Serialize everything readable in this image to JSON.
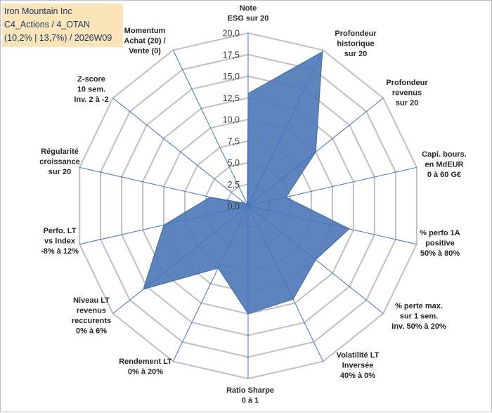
{
  "title_box": {
    "line1": "Iron Mountain Inc",
    "line2": "C4_Actions / 4_OTAN",
    "line3": "(10,2% | 13,7%) / 2026W09"
  },
  "colors": {
    "fill": "#4f79b7",
    "fill_stroke": "#3f68a5",
    "grid": "#bfbfbf",
    "spoke": "#4472c4",
    "title_bg": "#fbe5b8",
    "title_text": "#1f3864"
  },
  "chart_data": {
    "type": "radar",
    "rmin": 0,
    "rmax": 20,
    "ticks": [
      "0,0",
      "2,5",
      "5,0",
      "7,5",
      "10,0",
      "12,5",
      "15,0",
      "17,5",
      "20,0"
    ],
    "axes": [
      {
        "label": [
          "Note",
          "ESG sur 20"
        ],
        "value": 13.0
      },
      {
        "label": [
          "Profondeur",
          "historique",
          "sur 20"
        ],
        "value": 19.8
      },
      {
        "label": [
          "Profondeur",
          "revenus",
          "sur 20"
        ],
        "value": 10.0
      },
      {
        "label": [
          "Capi. bours.",
          "en MdEUR",
          "0 à 60 G€"
        ],
        "value": 4.5
      },
      {
        "label": [
          "% perfo 1A",
          "positive",
          "50% à 80%"
        ],
        "value": 12.0
      },
      {
        "label": [
          "% perte max.",
          "sur 1 sem.",
          "Inv. 50% à 20%"
        ],
        "value": 10.0
      },
      {
        "label": [
          "Volatilité LT",
          "Inversée",
          "40% à 0%"
        ],
        "value": 12.0
      },
      {
        "label": [
          "Ratio Sharpe",
          "0 à 1"
        ],
        "value": 12.5
      },
      {
        "label": [
          "Rendement LT",
          "0% à 20%"
        ],
        "value": 8.0
      },
      {
        "label": [
          "Niveau LT",
          "revenus",
          "reccurents",
          "0% à 6%"
        ],
        "value": 15.5
      },
      {
        "label": [
          "Perfo. LT",
          "vs Index",
          "-8% à 12%"
        ],
        "value": 10.0
      },
      {
        "label": [
          "Régularité",
          "croissance",
          "sur 20"
        ],
        "value": 4.5
      },
      {
        "label": [
          "Z-score",
          "10 sem.",
          "Inv. 2 à -2"
        ],
        "value": 0.5
      },
      {
        "label": [
          "Momentum",
          "Achat (20) /",
          "Vente (0)"
        ],
        "value": 0.2
      }
    ]
  }
}
